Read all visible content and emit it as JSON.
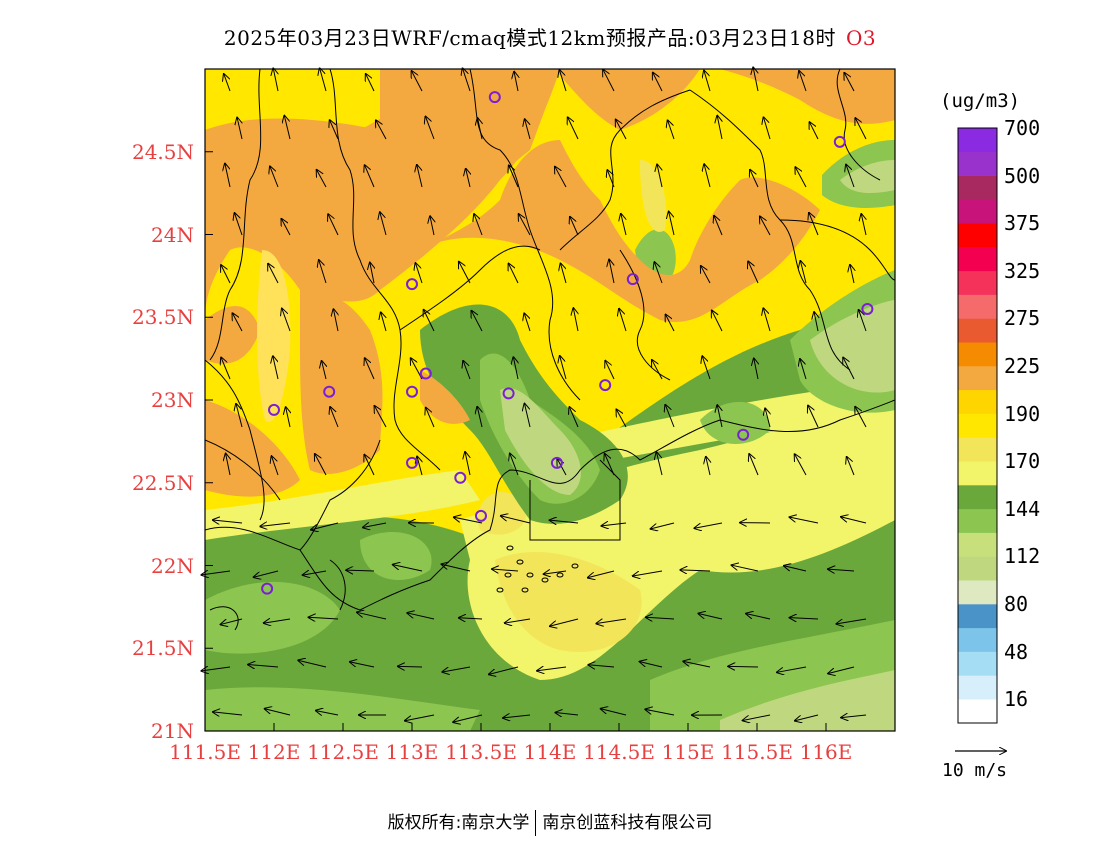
{
  "title": {
    "text": "2025年03月23日WRF/cmaq模式12km预报产品:03月23日18时",
    "species": "O3"
  },
  "map": {
    "y_ticks": [
      {
        "lat": 24.5,
        "label": "24.5N"
      },
      {
        "lat": 24.0,
        "label": "24N"
      },
      {
        "lat": 23.5,
        "label": "23.5N"
      },
      {
        "lat": 23.0,
        "label": "23N"
      },
      {
        "lat": 22.5,
        "label": "22.5N"
      },
      {
        "lat": 22.0,
        "label": "22N"
      },
      {
        "lat": 21.5,
        "label": "21.5N"
      },
      {
        "lat": 21.0,
        "label": "21N"
      }
    ],
    "x_ticks": [
      {
        "lon": 111.5,
        "label": "111.5E"
      },
      {
        "lon": 112.0,
        "label": "112E"
      },
      {
        "lon": 112.5,
        "label": "112.5E"
      },
      {
        "lon": 113.0,
        "label": "113E"
      },
      {
        "lon": 113.5,
        "label": "113.5E"
      },
      {
        "lon": 114.0,
        "label": "114E"
      },
      {
        "lon": 114.5,
        "label": "114.5E"
      },
      {
        "lon": 115.0,
        "label": "115E"
      },
      {
        "lon": 115.5,
        "label": "115.5E"
      },
      {
        "lon": 116.0,
        "label": "116E"
      }
    ],
    "lon_range": [
      111.5,
      116.5
    ],
    "lat_range": [
      21.0,
      25.0
    ],
    "stations": [
      {
        "lon": 113.6,
        "lat": 24.83
      },
      {
        "lon": 116.1,
        "lat": 24.56
      },
      {
        "lon": 113.0,
        "lat": 23.7
      },
      {
        "lon": 114.6,
        "lat": 23.73
      },
      {
        "lon": 116.3,
        "lat": 23.55
      },
      {
        "lon": 112.4,
        "lat": 23.05
      },
      {
        "lon": 113.1,
        "lat": 23.16
      },
      {
        "lon": 113.0,
        "lat": 23.05
      },
      {
        "lon": 113.7,
        "lat": 23.04
      },
      {
        "lon": 114.4,
        "lat": 23.09
      },
      {
        "lon": 112.0,
        "lat": 22.94
      },
      {
        "lon": 113.0,
        "lat": 22.62
      },
      {
        "lon": 113.35,
        "lat": 22.53
      },
      {
        "lon": 114.05,
        "lat": 22.62
      },
      {
        "lon": 115.4,
        "lat": 22.79
      },
      {
        "lon": 113.5,
        "lat": 22.3
      },
      {
        "lon": 111.95,
        "lat": 21.86
      }
    ]
  },
  "colorbar": {
    "unit": "(ug/m3)",
    "bins": [
      {
        "color": "#ffffff"
      },
      {
        "color": "#d7effb"
      },
      {
        "color": "#a5ddf4"
      },
      {
        "color": "#7cc4ea"
      },
      {
        "color": "#4a93c8"
      },
      {
        "color": "#dfe9c1"
      },
      {
        "color": "#bfd87f"
      },
      {
        "color": "#c7e07c"
      },
      {
        "color": "#8cc54f"
      },
      {
        "color": "#6aa83c"
      },
      {
        "color": "#f2f46a"
      },
      {
        "color": "#f3e55a"
      },
      {
        "color": "#ffe700"
      },
      {
        "color": "#ffd500"
      },
      {
        "color": "#f4a940"
      },
      {
        "color": "#f58b00"
      },
      {
        "color": "#ea5a30"
      },
      {
        "color": "#f56a6a"
      },
      {
        "color": "#f4325a"
      },
      {
        "color": "#f40050"
      },
      {
        "color": "#ff0000"
      },
      {
        "color": "#c8147a"
      },
      {
        "color": "#a82860"
      },
      {
        "color": "#9932cc"
      },
      {
        "color": "#8a2be2"
      }
    ],
    "labels": [
      "16",
      "48",
      "80",
      "112",
      "144",
      "170",
      "190",
      "225",
      "275",
      "325",
      "375",
      "500",
      "700"
    ]
  },
  "wind_reference": {
    "label": "10 m/s"
  },
  "footer": {
    "left": "版权所有:南京大学",
    "right": "南京创蓝科技有限公司"
  }
}
